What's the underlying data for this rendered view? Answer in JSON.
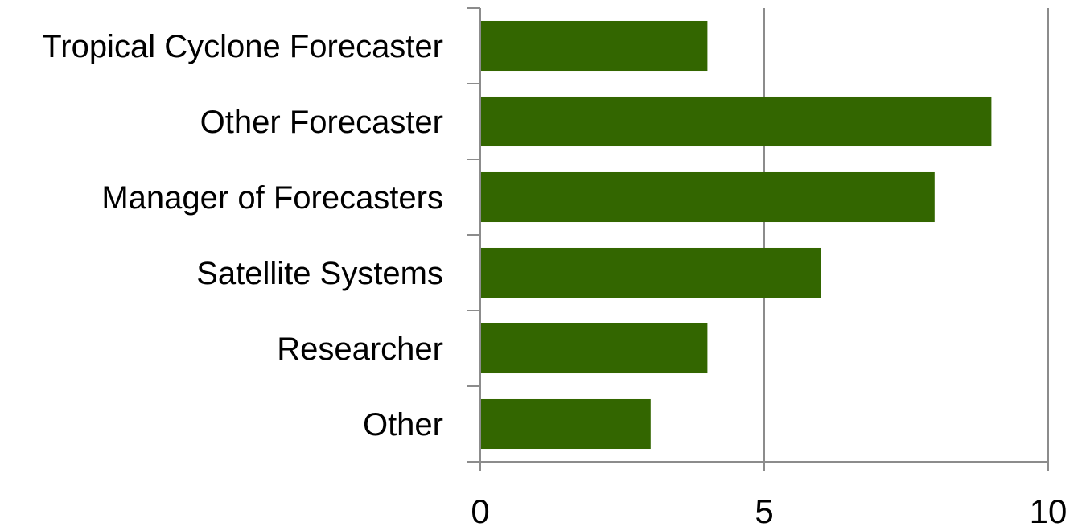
{
  "chart_data": {
    "type": "bar",
    "orientation": "horizontal",
    "title": "",
    "xlabel": "",
    "ylabel": "",
    "categories": [
      "Tropical Cyclone Forecaster",
      "Other Forecaster",
      "Manager of Forecasters",
      "Satellite Systems",
      "Researcher",
      "Other"
    ],
    "values": [
      4,
      9,
      8,
      6,
      4,
      3
    ],
    "xlim": [
      0,
      10
    ],
    "xticks": [
      "0",
      "5",
      "10"
    ],
    "grid": "vertical gridlines at major ticks",
    "legend": "none",
    "colors": {
      "bar": "#336600",
      "grid": "#8c8c8c",
      "axis": "#8c8c8c"
    }
  }
}
